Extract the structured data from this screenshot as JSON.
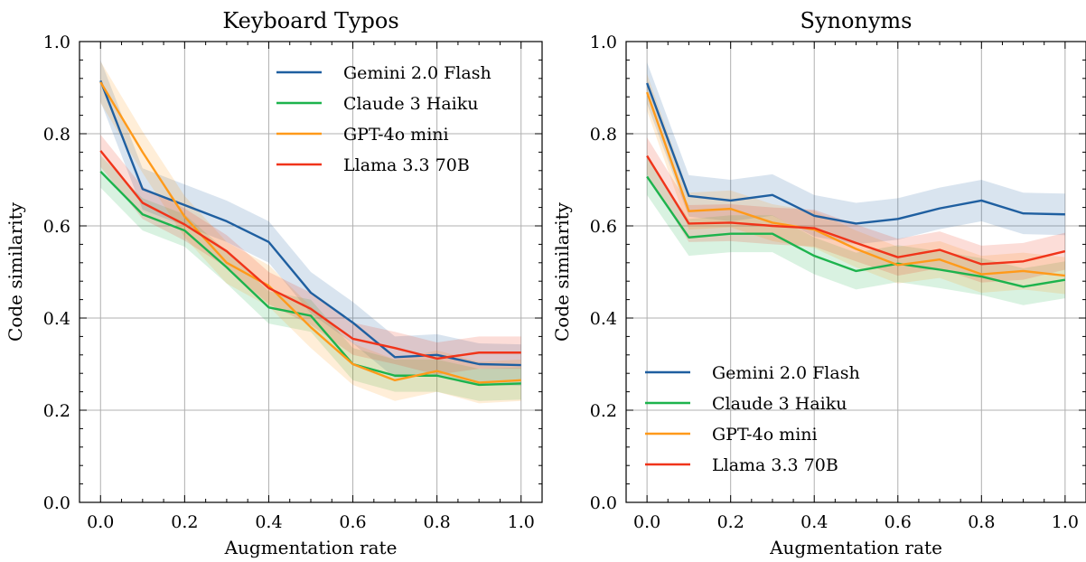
{
  "chart_data": [
    {
      "type": "line",
      "title": "Keyboard Typos",
      "xlabel": "Augmentation rate",
      "ylabel": "Code similarity",
      "xlim": [
        -0.05,
        1.05
      ],
      "ylim": [
        0,
        1
      ],
      "xticks": [
        "0.0",
        "0.2",
        "0.4",
        "0.6",
        "0.8",
        "1.0"
      ],
      "yticks": [
        "0.0",
        "0.2",
        "0.4",
        "0.6",
        "0.8",
        "1.0"
      ],
      "grid": true,
      "legend_position": "top-right",
      "x": [
        0.0,
        0.1,
        0.2,
        0.3,
        0.4,
        0.5,
        0.6,
        0.7,
        0.8,
        0.9,
        1.0
      ],
      "series": [
        {
          "name": "Gemini 2.0 Flash",
          "color": "#1f5fa0",
          "values": [
            0.915,
            0.68,
            0.645,
            0.61,
            0.565,
            0.455,
            0.39,
            0.315,
            0.32,
            0.3,
            0.298
          ],
          "band": 0.045
        },
        {
          "name": "Claude 3 Haiku",
          "color": "#1db34d",
          "values": [
            0.718,
            0.625,
            0.59,
            0.51,
            0.423,
            0.405,
            0.3,
            0.275,
            0.275,
            0.255,
            0.258
          ],
          "band": 0.035
        },
        {
          "name": "GPT-4o mini",
          "color": "#ff9a1a",
          "values": [
            0.912,
            0.76,
            0.62,
            0.52,
            0.47,
            0.38,
            0.3,
            0.265,
            0.285,
            0.26,
            0.265
          ],
          "band": 0.045
        },
        {
          "name": "Llama 3.3 70B",
          "color": "#f0341a",
          "values": [
            0.763,
            0.65,
            0.603,
            0.545,
            0.465,
            0.42,
            0.355,
            0.335,
            0.312,
            0.325,
            0.325
          ],
          "band": 0.035
        }
      ]
    },
    {
      "type": "line",
      "title": "Synonyms",
      "xlabel": "Augmentation rate",
      "ylabel": "Code similarity",
      "xlim": [
        -0.05,
        1.05
      ],
      "ylim": [
        0,
        1
      ],
      "xticks": [
        "0.0",
        "0.2",
        "0.4",
        "0.6",
        "0.8",
        "1.0"
      ],
      "yticks": [
        "0.0",
        "0.2",
        "0.4",
        "0.6",
        "0.8",
        "1.0"
      ],
      "grid": true,
      "legend_position": "bottom-left",
      "x": [
        0.0,
        0.1,
        0.2,
        0.3,
        0.4,
        0.5,
        0.6,
        0.7,
        0.8,
        0.9,
        1.0
      ],
      "series": [
        {
          "name": "Gemini 2.0 Flash",
          "color": "#1f5fa0",
          "values": [
            0.91,
            0.665,
            0.655,
            0.667,
            0.622,
            0.605,
            0.615,
            0.638,
            0.655,
            0.627,
            0.625
          ],
          "band": 0.045
        },
        {
          "name": "Claude 3 Haiku",
          "color": "#1db34d",
          "values": [
            0.707,
            0.575,
            0.583,
            0.583,
            0.535,
            0.502,
            0.518,
            0.505,
            0.49,
            0.468,
            0.483
          ],
          "band": 0.04
        },
        {
          "name": "GPT-4o mini",
          "color": "#ff9a1a",
          "values": [
            0.89,
            0.632,
            0.637,
            0.607,
            0.592,
            0.55,
            0.515,
            0.527,
            0.495,
            0.502,
            0.492
          ],
          "band": 0.04
        },
        {
          "name": "Llama 3.3 70B",
          "color": "#f0341a",
          "values": [
            0.752,
            0.605,
            0.607,
            0.6,
            0.595,
            0.563,
            0.532,
            0.548,
            0.517,
            0.523,
            0.545
          ],
          "band": 0.04
        }
      ]
    }
  ]
}
